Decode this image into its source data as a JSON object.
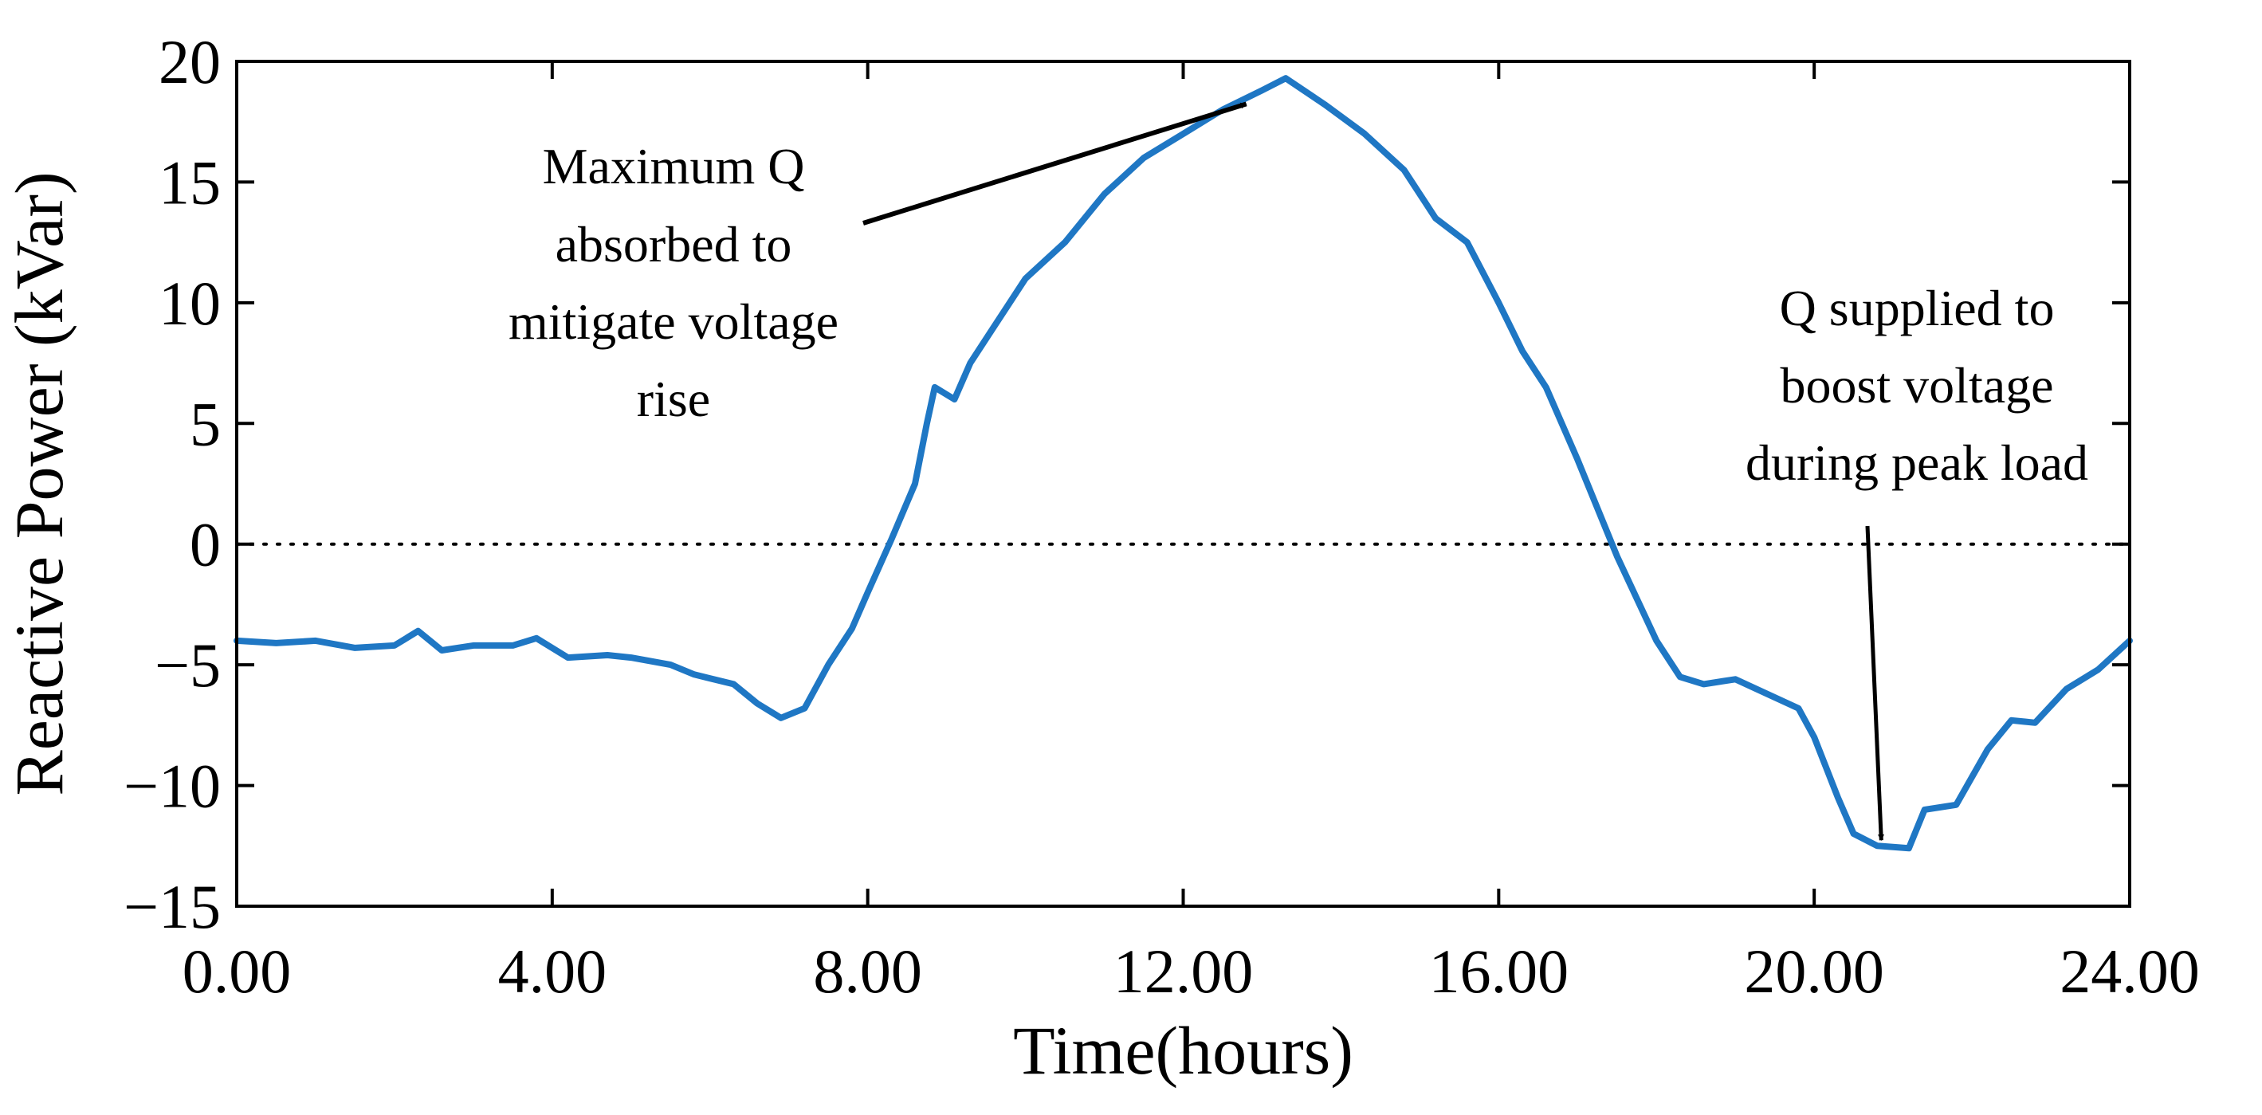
{
  "chart_data": {
    "type": "line",
    "title": "",
    "xlabel": "Time(hours)",
    "ylabel": "Reactive Power (kVar)",
    "xlim": [
      0,
      24
    ],
    "ylim": [
      -15,
      20
    ],
    "xticks": [
      0,
      4,
      8,
      12,
      16,
      20,
      24
    ],
    "xtick_labels": [
      "0.00",
      "4.00",
      "8.00",
      "12.00",
      "16.00",
      "20.00",
      "24.00"
    ],
    "yticks": [
      20,
      15,
      10,
      5,
      0,
      -5,
      -10,
      -15
    ],
    "ytick_labels": [
      "20",
      "15",
      "10",
      "5",
      "0",
      "−5",
      "−10",
      "−15"
    ],
    "grid": false,
    "line_color": "#1f77c4",
    "reference_line": {
      "y": 0,
      "style": "dotted"
    },
    "series": [
      {
        "name": "Reactive Power",
        "points": [
          [
            0.0,
            -4.0
          ],
          [
            0.5,
            -4.1
          ],
          [
            1.0,
            -4.0
          ],
          [
            1.5,
            -4.3
          ],
          [
            2.0,
            -4.2
          ],
          [
            2.3,
            -3.6
          ],
          [
            2.6,
            -4.4
          ],
          [
            3.0,
            -4.2
          ],
          [
            3.5,
            -4.2
          ],
          [
            3.8,
            -3.9
          ],
          [
            4.2,
            -4.7
          ],
          [
            4.7,
            -4.6
          ],
          [
            5.0,
            -4.7
          ],
          [
            5.5,
            -5.0
          ],
          [
            5.8,
            -5.4
          ],
          [
            6.3,
            -5.8
          ],
          [
            6.6,
            -6.6
          ],
          [
            6.9,
            -7.2
          ],
          [
            7.2,
            -6.8
          ],
          [
            7.5,
            -5.0
          ],
          [
            7.8,
            -3.5
          ],
          [
            8.0,
            -2.0
          ],
          [
            8.3,
            0.2
          ],
          [
            8.6,
            2.5
          ],
          [
            8.75,
            5.0
          ],
          [
            8.85,
            6.5
          ],
          [
            9.1,
            6.0
          ],
          [
            9.3,
            7.5
          ],
          [
            9.6,
            9.0
          ],
          [
            10.0,
            11.0
          ],
          [
            10.5,
            12.5
          ],
          [
            11.0,
            14.5
          ],
          [
            11.5,
            16.0
          ],
          [
            12.0,
            17.0
          ],
          [
            12.5,
            18.0
          ],
          [
            13.0,
            18.8
          ],
          [
            13.3,
            19.3
          ],
          [
            13.8,
            18.2
          ],
          [
            14.3,
            17.0
          ],
          [
            14.8,
            15.5
          ],
          [
            15.2,
            13.5
          ],
          [
            15.6,
            12.5
          ],
          [
            16.0,
            10.0
          ],
          [
            16.3,
            8.0
          ],
          [
            16.6,
            6.5
          ],
          [
            17.0,
            3.5
          ],
          [
            17.5,
            -0.5
          ],
          [
            18.0,
            -4.0
          ],
          [
            18.3,
            -5.5
          ],
          [
            18.6,
            -5.8
          ],
          [
            19.0,
            -5.6
          ],
          [
            19.4,
            -6.2
          ],
          [
            19.8,
            -6.8
          ],
          [
            20.0,
            -8.0
          ],
          [
            20.3,
            -10.5
          ],
          [
            20.5,
            -12.0
          ],
          [
            20.8,
            -12.5
          ],
          [
            21.2,
            -12.6
          ],
          [
            21.4,
            -11.0
          ],
          [
            21.8,
            -10.8
          ],
          [
            22.2,
            -8.5
          ],
          [
            22.5,
            -7.3
          ],
          [
            22.8,
            -7.4
          ],
          [
            23.2,
            -6.0
          ],
          [
            23.6,
            -5.2
          ],
          [
            24.0,
            -4.0
          ]
        ]
      }
    ],
    "annotations": [
      {
        "lines": [
          "Maximum Q",
          "absorbed to",
          "mitigate voltage",
          "rise"
        ],
        "target": [
          12.8,
          18.5
        ],
        "placement": "upper-left"
      },
      {
        "lines": [
          "Q  supplied to",
          "boost voltage",
          "during peak load"
        ],
        "target": [
          20.8,
          -12.4
        ],
        "placement": "right"
      }
    ]
  }
}
